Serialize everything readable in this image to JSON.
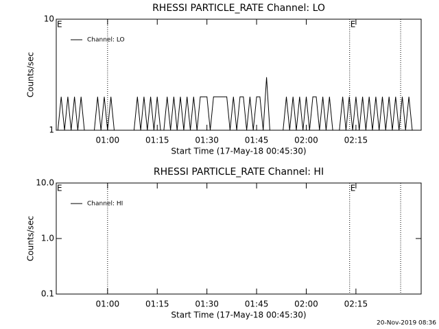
{
  "chart_data": [
    {
      "type": "line",
      "title": "RHESSI PARTICLE_RATE Channel: LO",
      "xlabel": "Start Time (17-May-18 00:45:30)",
      "ylabel": "Counts/sec",
      "log_y": true,
      "ylim": [
        1,
        10
      ],
      "yticks": [
        1,
        10
      ],
      "xlim": [
        44.5,
        154.7
      ],
      "xticks": [
        {
          "value": 60,
          "label": "01:00"
        },
        {
          "value": 75,
          "label": "01:15"
        },
        {
          "value": 90,
          "label": "01:30"
        },
        {
          "value": 105,
          "label": "01:45"
        },
        {
          "value": 120,
          "label": "02:00"
        },
        {
          "value": 135,
          "label": "02:15"
        }
      ],
      "vlines": [
        60,
        133.1,
        148.5
      ],
      "annotations": [
        {
          "text": "E",
          "x": 44.5
        },
        {
          "text": "E",
          "x": 133.1
        }
      ],
      "legend": "top-left",
      "series": [
        {
          "name": "Channel: LO",
          "color": "#000000",
          "x": [
            45,
            46,
            47,
            48,
            49,
            50,
            51,
            52,
            53,
            54,
            55,
            56,
            57,
            58,
            59,
            60,
            61,
            62,
            63,
            64,
            65,
            66,
            67,
            68,
            69,
            70,
            71,
            72,
            73,
            74,
            75,
            76,
            77,
            78,
            79,
            80,
            81,
            82,
            83,
            84,
            85,
            86,
            87,
            88,
            89,
            90,
            91,
            92,
            93,
            94,
            95,
            96,
            97,
            98,
            99,
            100,
            101,
            102,
            103,
            104,
            105,
            106,
            107,
            108,
            109,
            110,
            111,
            112,
            113,
            114,
            115,
            116,
            117,
            118,
            119,
            120,
            121,
            122,
            123,
            124,
            125,
            126,
            127,
            128,
            129,
            130,
            131,
            132,
            133,
            134,
            135,
            136,
            137,
            138,
            139,
            140,
            141,
            142,
            143,
            144,
            145,
            146,
            147,
            148,
            149,
            150,
            151,
            152
          ],
          "values": [
            1,
            2,
            1,
            2,
            1,
            2,
            1,
            2,
            1,
            1,
            1,
            1,
            2,
            1,
            2,
            1,
            2,
            1,
            1,
            1,
            1,
            1,
            1,
            1,
            2,
            1,
            2,
            1,
            2,
            1,
            2,
            1,
            1,
            2,
            1,
            2,
            1,
            2,
            1,
            2,
            1,
            2,
            1,
            2,
            2,
            2,
            1,
            2,
            2,
            2,
            2,
            2,
            1,
            2,
            1,
            2,
            2,
            1,
            2,
            1,
            2,
            2,
            1,
            3,
            1,
            1,
            1,
            1,
            1,
            2,
            1,
            2,
            1,
            2,
            1,
            2,
            1,
            2,
            2,
            1,
            2,
            1,
            2,
            1,
            1,
            1,
            2,
            1,
            2,
            1,
            2,
            1,
            2,
            1,
            2,
            1,
            2,
            1,
            2,
            1,
            2,
            1,
            2,
            1,
            2,
            1,
            2,
            1
          ]
        }
      ]
    },
    {
      "type": "line",
      "title": "RHESSI PARTICLE_RATE Channel: HI",
      "xlabel": "Start Time (17-May-18 00:45:30)",
      "ylabel": "Counts/sec",
      "log_y": true,
      "ylim": [
        0.1,
        10
      ],
      "yticks": [
        0.1,
        {
          "value": 1,
          "label": "1.0"
        },
        {
          "value": 10,
          "label": "10.0"
        }
      ],
      "xlim": [
        44.5,
        154.7
      ],
      "xticks": [
        {
          "value": 60,
          "label": "01:00"
        },
        {
          "value": 75,
          "label": "01:15"
        },
        {
          "value": 90,
          "label": "01:30"
        },
        {
          "value": 105,
          "label": "01:45"
        },
        {
          "value": 120,
          "label": "02:00"
        },
        {
          "value": 135,
          "label": "02:15"
        }
      ],
      "vlines": [
        60,
        133.1,
        148.5
      ],
      "annotations": [
        {
          "text": "E",
          "x": 44.5
        },
        {
          "text": "E",
          "x": 133.1
        }
      ],
      "legend": "top-left",
      "series": [
        {
          "name": "Channel: HI",
          "color": "#000000",
          "x": [],
          "values": []
        }
      ]
    }
  ],
  "footer": "20-Nov-2019 08:36"
}
